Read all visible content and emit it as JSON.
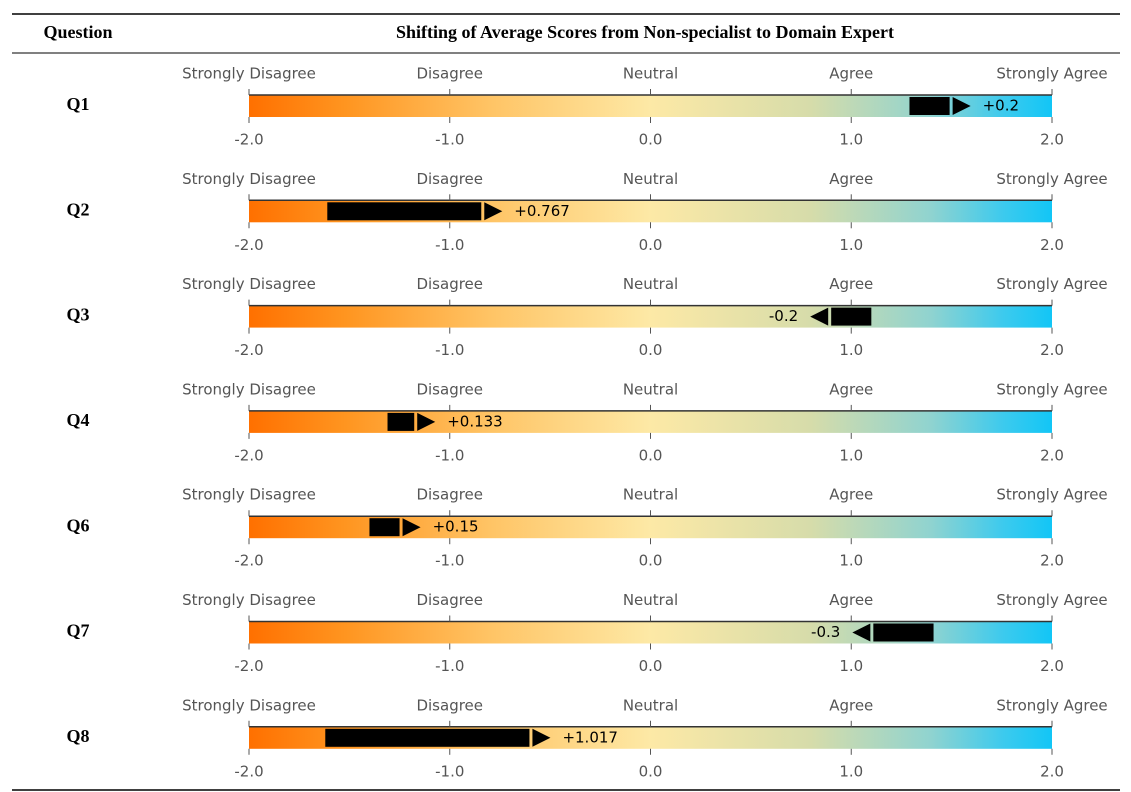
{
  "table": {
    "headers": [
      "Question",
      "Shifting of Average Scores from Non-specialist to Domain Expert"
    ],
    "rows": [
      {
        "question": "Q1",
        "from": 1.29,
        "shift": 0.2,
        "shift_label": "+0.2"
      },
      {
        "question": "Q2",
        "from": -1.61,
        "shift": 0.767,
        "shift_label": "+0.767"
      },
      {
        "question": "Q3",
        "from": 1.1,
        "shift": -0.2,
        "shift_label": "-0.2"
      },
      {
        "question": "Q4",
        "from": -1.31,
        "shift": 0.133,
        "shift_label": "+0.133"
      },
      {
        "question": "Q6",
        "from": -1.4,
        "shift": 0.15,
        "shift_label": "+0.15"
      },
      {
        "question": "Q7",
        "from": 1.41,
        "shift": -0.3,
        "shift_label": "-0.3"
      },
      {
        "question": "Q8",
        "from": -1.62,
        "shift": 1.017,
        "shift_label": "+1.017"
      }
    ]
  },
  "scale": {
    "xlim": [
      -2,
      2
    ],
    "xticks": [
      {
        "value": -2,
        "label": "-2.0"
      },
      {
        "value": -1,
        "label": "-1.0"
      },
      {
        "value": 0,
        "label": "0.0"
      },
      {
        "value": 1,
        "label": "1.0"
      },
      {
        "value": 2,
        "label": "2.0"
      }
    ],
    "anchor_labels": [
      "Strongly Disagree",
      "Disagree",
      "Neutral",
      "Agree",
      "Strongly Agree"
    ]
  }
}
